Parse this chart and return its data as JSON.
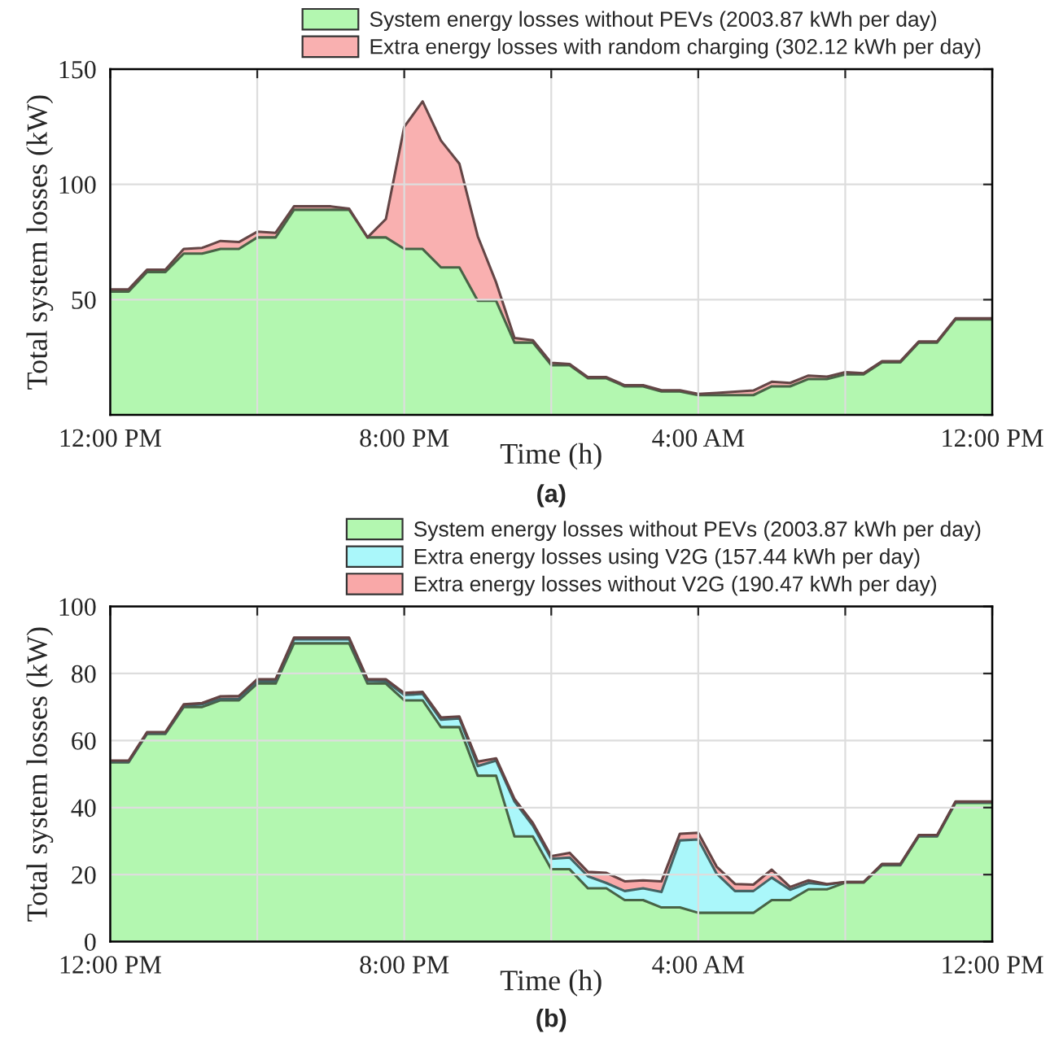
{
  "chart_data": [
    {
      "type": "area",
      "stacked": true,
      "xlabel": "Time (h)",
      "ylabel": "Total system losses (kW)",
      "legend": "top right",
      "grid": true,
      "annotations": [
        "(a)"
      ],
      "x": [
        "2000-01-01T12:00",
        "2000-01-01T12:30",
        "2000-01-01T13:00",
        "2000-01-01T13:30",
        "2000-01-01T14:00",
        "2000-01-01T14:30",
        "2000-01-01T15:00",
        "2000-01-01T15:30",
        "2000-01-01T16:00",
        "2000-01-01T16:30",
        "2000-01-01T17:00",
        "2000-01-01T17:30",
        "2000-01-01T18:00",
        "2000-01-01T18:30",
        "2000-01-01T19:00",
        "2000-01-01T19:30",
        "2000-01-01T20:00",
        "2000-01-01T20:30",
        "2000-01-01T21:00",
        "2000-01-01T21:30",
        "2000-01-01T22:00",
        "2000-01-01T22:30",
        "2000-01-01T23:00",
        "2000-01-01T23:30",
        "2000-01-02T00:00",
        "2000-01-02T00:30",
        "2000-01-02T01:00",
        "2000-01-02T01:30",
        "2000-01-02T02:00",
        "2000-01-02T02:30",
        "2000-01-02T03:00",
        "2000-01-02T03:30",
        "2000-01-02T04:00",
        "2000-01-02T04:30",
        "2000-01-02T05:00",
        "2000-01-02T05:30",
        "2000-01-02T06:00",
        "2000-01-02T06:30",
        "2000-01-02T07:00",
        "2000-01-02T07:30",
        "2000-01-02T08:00",
        "2000-01-02T08:30",
        "2000-01-02T09:00",
        "2000-01-02T09:30",
        "2000-01-02T10:00",
        "2000-01-02T10:30",
        "2000-01-02T11:00",
        "2000-01-02T11:30",
        "2000-01-02T12:00"
      ],
      "xlim": [
        "2000-01-01T12:00",
        "2000-01-02T12:00"
      ],
      "xticks": [
        {
          "value": "2000-01-01T12:00",
          "label": "12:00 PM"
        },
        {
          "value": "2000-01-01T16:00",
          "label": null
        },
        {
          "value": "2000-01-01T20:00",
          "label": "8:00 PM"
        },
        {
          "value": "2000-01-02T00:00",
          "label": null
        },
        {
          "value": "2000-01-02T04:00",
          "label": "4:00 AM"
        },
        {
          "value": "2000-01-02T08:00",
          "label": null
        },
        {
          "value": "2000-01-02T12:00",
          "label": "12:00 PM"
        }
      ],
      "ylim": [
        0,
        150
      ],
      "yticks": [
        {
          "value": 0,
          "label": null
        },
        50,
        100,
        150
      ],
      "series": [
        {
          "name": "System energy losses without PEVs (2003.87 kWh per day)",
          "color": "#b3f7b0",
          "values": [
            53.5,
            53.5,
            62,
            62,
            70,
            70,
            72,
            72,
            77,
            77,
            89,
            89,
            89,
            89,
            77,
            77,
            72,
            72,
            64,
            64,
            49.5,
            49.5,
            31.4,
            31.4,
            21.6,
            21.6,
            15.9,
            15.9,
            12.4,
            12.4,
            10.2,
            10.2,
            8.6,
            8.6,
            8.6,
            8.6,
            12.4,
            12.4,
            15.6,
            15.6,
            17.6,
            17.6,
            22.8,
            22.8,
            31.4,
            31.4,
            41.4,
            41.4,
            41.4
          ]
        },
        {
          "name": "Extra energy losses with random charging (302.12 kWh per day)",
          "color": "#f9b0b0",
          "values": [
            1,
            1,
            1,
            1,
            2,
            2.5,
            3.5,
            3,
            2.5,
            2,
            1.5,
            1.5,
            1.5,
            0.5,
            0,
            8,
            53,
            64,
            55,
            45,
            28,
            8,
            2,
            1,
            1,
            0.5,
            0.5,
            0.5,
            0.5,
            0.5,
            0.5,
            0.5,
            0.5,
            1,
            1.5,
            2,
            2,
            1.5,
            1.5,
            1,
            1,
            0.5,
            0.5,
            0.5,
            0.5,
            0.5,
            0.5,
            0.5,
            0.5
          ]
        }
      ]
    },
    {
      "type": "area",
      "stacked": true,
      "xlabel": "Time (h)",
      "ylabel": "Total system losses (kW)",
      "legend": "top right",
      "grid": true,
      "annotations": [
        "(b)"
      ],
      "x": [
        "2000-01-01T12:00",
        "2000-01-01T12:30",
        "2000-01-01T13:00",
        "2000-01-01T13:30",
        "2000-01-01T14:00",
        "2000-01-01T14:30",
        "2000-01-01T15:00",
        "2000-01-01T15:30",
        "2000-01-01T16:00",
        "2000-01-01T16:30",
        "2000-01-01T17:00",
        "2000-01-01T17:30",
        "2000-01-01T18:00",
        "2000-01-01T18:30",
        "2000-01-01T19:00",
        "2000-01-01T19:30",
        "2000-01-01T20:00",
        "2000-01-01T20:30",
        "2000-01-01T21:00",
        "2000-01-01T21:30",
        "2000-01-01T22:00",
        "2000-01-01T22:30",
        "2000-01-01T23:00",
        "2000-01-01T23:30",
        "2000-01-02T00:00",
        "2000-01-02T00:30",
        "2000-01-02T01:00",
        "2000-01-02T01:30",
        "2000-01-02T02:00",
        "2000-01-02T02:30",
        "2000-01-02T03:00",
        "2000-01-02T03:30",
        "2000-01-02T04:00",
        "2000-01-02T04:30",
        "2000-01-02T05:00",
        "2000-01-02T05:30",
        "2000-01-02T06:00",
        "2000-01-02T06:30",
        "2000-01-02T07:00",
        "2000-01-02T07:30",
        "2000-01-02T08:00",
        "2000-01-02T08:30",
        "2000-01-02T09:00",
        "2000-01-02T09:30",
        "2000-01-02T10:00",
        "2000-01-02T10:30",
        "2000-01-02T11:00",
        "2000-01-02T11:30",
        "2000-01-02T12:00"
      ],
      "xlim": [
        "2000-01-01T12:00",
        "2000-01-02T12:00"
      ],
      "xticks": [
        {
          "value": "2000-01-01T12:00",
          "label": "12:00 PM"
        },
        {
          "value": "2000-01-01T16:00",
          "label": null
        },
        {
          "value": "2000-01-01T20:00",
          "label": "8:00 PM"
        },
        {
          "value": "2000-01-02T00:00",
          "label": null
        },
        {
          "value": "2000-01-02T04:00",
          "label": "4:00 AM"
        },
        {
          "value": "2000-01-02T08:00",
          "label": null
        },
        {
          "value": "2000-01-02T12:00",
          "label": "12:00 PM"
        }
      ],
      "ylim": [
        0,
        100
      ],
      "yticks": [
        0,
        20,
        40,
        60,
        80,
        100
      ],
      "series": [
        {
          "name": "System energy losses without PEVs (2003.87 kWh per day)",
          "color": "#b3f7b0",
          "values": [
            53.5,
            53.5,
            62,
            62,
            70,
            70,
            72,
            72,
            77,
            77,
            89,
            89,
            89,
            89,
            77,
            77,
            72,
            72,
            64,
            64,
            49.5,
            49.5,
            31.4,
            31.4,
            21.6,
            21.6,
            15.9,
            15.9,
            12.4,
            12.4,
            10.2,
            10.2,
            8.6,
            8.6,
            8.6,
            8.6,
            12.4,
            12.4,
            15.6,
            15.6,
            17.6,
            17.6,
            22.8,
            22.8,
            31.4,
            31.4,
            41.4,
            41.4,
            41.4
          ]
        },
        {
          "name": "Extra energy losses using V2G (157.44 kWh per day)",
          "color": "#aaf7fa",
          "values": [
            0.2,
            0.2,
            0.2,
            0.2,
            0.5,
            0.8,
            0.4,
            0.5,
            0.7,
            0.7,
            1.2,
            1.2,
            1.2,
            1.2,
            0.8,
            0.7,
            1.6,
            1.9,
            2.2,
            2.6,
            2.9,
            4.5,
            10.4,
            3.2,
            3.1,
            3.5,
            3.6,
            1.6,
            2.7,
            3.5,
            4.6,
            20,
            21.9,
            11.7,
            6.5,
            6.5,
            6.7,
            3.1,
            1.9,
            1.4,
            0.2,
            0.2,
            0.2,
            0.2,
            0.2,
            0.2,
            0.2,
            0.2,
            0.2
          ]
        },
        {
          "name": "Extra energy losses without V2G (190.47 kWh per day)",
          "color": "#f9a8a8",
          "values": [
            0.3,
            0.3,
            0.3,
            0.3,
            0.3,
            0.4,
            0.8,
            0.8,
            0.6,
            0.6,
            0.5,
            0.5,
            0.5,
            0.5,
            0.5,
            0.6,
            0.6,
            0.6,
            0.7,
            0.6,
            1.3,
            0.7,
            0.8,
            0.8,
            0.8,
            1.4,
            1.3,
            3,
            2.9,
            2.4,
            3.2,
            2,
            2,
            2.1,
            2.1,
            1.9,
            2.4,
            0.8,
            0.8,
            0.2,
            0,
            0,
            0.2,
            0.2,
            0.2,
            0.2,
            0.2,
            0.2,
            0.2
          ]
        }
      ]
    }
  ]
}
